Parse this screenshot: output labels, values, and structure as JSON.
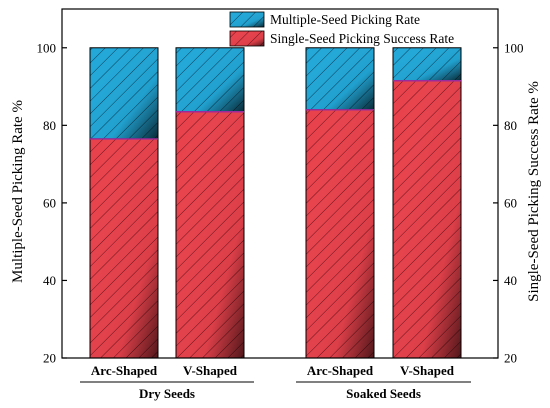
{
  "chart_data": {
    "type": "bar",
    "stacked": true,
    "groups": [
      {
        "label": "Dry Seeds",
        "categories": [
          "Arc-Shaped",
          "V-Shaped"
        ]
      },
      {
        "label": "Soaked Seeds",
        "categories": [
          "Arc-Shaped",
          "V-Shaped"
        ]
      }
    ],
    "categories": [
      "Arc-Shaped",
      "V-Shaped",
      "Arc-Shaped",
      "V-Shaped"
    ],
    "series": [
      {
        "name": "Single-Seed Picking Success Rate",
        "values": [
          76.5,
          83.5,
          84.0,
          91.5
        ],
        "color": "#e8424c",
        "pattern": "diagonal-hatch"
      },
      {
        "name": "Multiple-Seed Picking Rate",
        "values": [
          23.5,
          16.5,
          16.0,
          8.5
        ],
        "color": "#22a8d8",
        "pattern": "diagonal-hatch"
      }
    ],
    "ylabel_left": "Multiple-Seed Picking Rate %",
    "ylabel_right": "Single-Seed Picking Success Rate %",
    "ylim": [
      20,
      110
    ],
    "left_ticks": [
      20,
      40,
      60,
      80,
      100
    ],
    "right_ticks": [
      20,
      40,
      60,
      80,
      100
    ],
    "legend_position": "top-center",
    "grid": false
  }
}
